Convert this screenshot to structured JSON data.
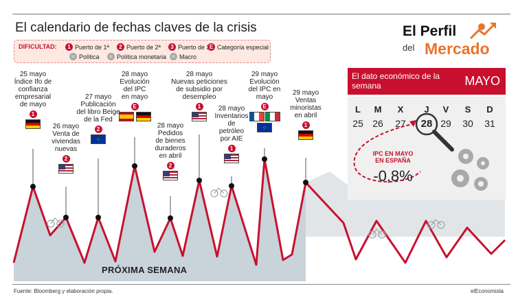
{
  "header": {
    "title": "El calendario de fechas claves de la crisis"
  },
  "legend": {
    "heading": "DIFICULTAD:",
    "items": [
      {
        "symbol": "1",
        "label": "Puerto de 1ª"
      },
      {
        "symbol": "2",
        "label": "Puerto de 2ª"
      },
      {
        "symbol": "3",
        "label": "Puerto de 3ª"
      },
      {
        "symbol": "E",
        "label": "Categoría especial"
      },
      {
        "symbol": "",
        "label": "Política"
      },
      {
        "symbol": "",
        "label": "Política monetaria"
      },
      {
        "symbol": "",
        "label": "Macro"
      }
    ]
  },
  "logo": {
    "line1": "El Perfil",
    "line2": "del",
    "line3": "Mercado"
  },
  "events": [
    {
      "label": "25 mayo\nÍndice Ifo de\nconfianza\nempresarial\nde mayo",
      "badge": "1",
      "flag": "germany"
    },
    {
      "label": "26 mayo\nVenta de\nviviendas\nnuevas",
      "badge": "2",
      "flag": "usa"
    },
    {
      "label": "27 mayo\nPublicación\ndel libro Beige\nde la Fed",
      "badge": "2",
      "flag": "eu"
    },
    {
      "label": "28 mayo\nEvolución\ndel IPC\nen mayo",
      "badge": "E",
      "flag": "spain+germany"
    },
    {
      "label": "28 mayo\nPedidos\nde bienes\nduraderos\nen abril",
      "badge": "2",
      "flag": "usa"
    },
    {
      "label": "28 mayo\nNuevas peticiones\nde subsidio por\ndesempleo",
      "badge": "1",
      "flag": "usa"
    },
    {
      "label": "28 mayo\nInventarios\nde\npetróleo\npor AIE",
      "badge": "1",
      "flag": "usa"
    },
    {
      "label": "29 mayo\nEvolución\ndel IPC en\nmayo",
      "badge": "E",
      "flag": "france+italy+eu"
    },
    {
      "label": "29 mayo\nVentas\nminoristas\nen abril",
      "badge": "1",
      "flag": "germany"
    }
  ],
  "chart_label": "PRÓXIMA SEMANA",
  "panel": {
    "title": "El dato económico de la semana",
    "month": "MAYO",
    "weekdays": [
      "L",
      "M",
      "X",
      "J",
      "V",
      "S",
      "D"
    ],
    "days": [
      "25",
      "26",
      "27",
      "28",
      "29",
      "30",
      "31"
    ],
    "highlight_day": "28",
    "ipc_label": "IPC EN MAYO\nEN ESPAÑA",
    "ipc_value": "-0,8%"
  },
  "footer": {
    "source": "Fuente: Bloomberg y elaboración propia.",
    "brand": "elEconomista"
  },
  "colors": {
    "accent": "#c8102e",
    "logo_orange": "#e8752b",
    "profile_fill": "#c8d3da",
    "profile_line": "#c8102e"
  }
}
